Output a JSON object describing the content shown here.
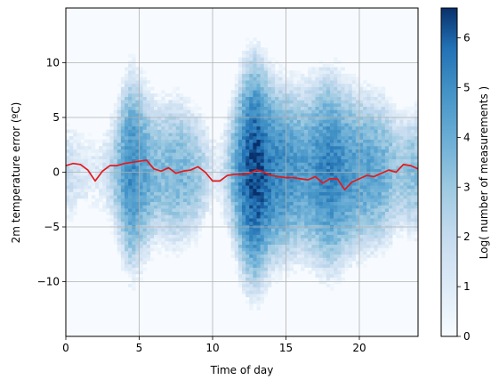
{
  "chart_data": {
    "type": "heatmap",
    "xlabel": "Time of day",
    "ylabel": "2m temperature error (ºC)",
    "xlim": [
      0,
      24
    ],
    "ylim": [
      -15,
      15
    ],
    "xticks": [
      0,
      5,
      10,
      15,
      20
    ],
    "yticks": [
      -10,
      -5,
      0,
      5,
      10
    ],
    "xtick_labels": [
      "0",
      "5",
      "10",
      "15",
      "20"
    ],
    "ytick_labels": [
      "−10",
      "−5",
      "0",
      "5",
      "10"
    ],
    "grid": true,
    "colormap": "Blues",
    "colorbar": {
      "label": "Log( number of measurements )",
      "range": [
        0,
        6.6
      ],
      "ticks": [
        0,
        1,
        2,
        3,
        4,
        5,
        6
      ],
      "tick_labels": [
        "0",
        "1",
        "2",
        "3",
        "4",
        "5",
        "6"
      ]
    },
    "density_by_hour": {
      "hours": [
        0,
        0.5,
        1,
        1.5,
        2,
        2.5,
        3,
        3.5,
        4,
        4.5,
        5,
        5.5,
        6,
        6.5,
        7,
        7.5,
        8,
        8.5,
        9,
        9.5,
        10,
        10.5,
        11,
        11.5,
        12,
        12.5,
        13,
        13.5,
        14,
        14.5,
        15,
        15.5,
        16,
        16.5,
        17,
        17.5,
        18,
        18.5,
        19,
        19.5,
        20,
        20.5,
        21,
        21.5,
        22,
        22.5,
        23,
        23.5,
        24
      ],
      "peak_log_count": [
        1.8,
        1.6,
        1.3,
        1.0,
        1.0,
        1.2,
        2.0,
        3.2,
        4.6,
        5.2,
        4.6,
        4.2,
        3.6,
        3.4,
        3.6,
        3.8,
        3.6,
        3.4,
        3.0,
        2.2,
        1.0,
        1.0,
        2.4,
        4.0,
        5.4,
        6.2,
        6.5,
        6.0,
        5.4,
        5.2,
        5.0,
        4.8,
        4.6,
        4.6,
        4.8,
        5.2,
        5.4,
        5.2,
        4.8,
        4.6,
        4.4,
        4.4,
        4.2,
        4.0,
        3.6,
        3.0,
        3.0,
        3.4,
        3.4
      ],
      "spread_std": [
        2.6,
        2.6,
        2.4,
        2.3,
        2.3,
        2.4,
        2.6,
        3.0,
        3.4,
        3.6,
        3.5,
        3.2,
        3.0,
        3.0,
        3.0,
        3.0,
        2.9,
        2.8,
        2.8,
        2.6,
        2.4,
        2.4,
        2.8,
        3.2,
        3.6,
        3.8,
        3.8,
        3.6,
        3.4,
        3.3,
        3.2,
        3.2,
        3.2,
        3.3,
        3.4,
        3.5,
        3.5,
        3.4,
        3.3,
        3.2,
        3.1,
        3.0,
        3.0,
        3.0,
        2.9,
        2.7,
        2.6,
        2.6,
        2.6
      ]
    },
    "series": [
      {
        "color": "#e41a1c",
        "x": [
          0,
          0.5,
          1,
          1.5,
          2,
          2.5,
          3,
          3.5,
          4,
          4.5,
          5,
          5.5,
          6,
          6.5,
          7,
          7.5,
          8,
          8.5,
          9,
          9.5,
          10,
          10.5,
          11,
          11.5,
          12,
          12.5,
          13,
          13.5,
          14,
          14.5,
          15,
          15.5,
          16,
          16.5,
          17,
          17.5,
          18,
          18.5,
          19,
          19.5,
          20,
          20.5,
          21,
          21.5,
          22,
          22.5,
          23,
          23.5,
          24
        ],
        "y": [
          0.6,
          0.8,
          0.7,
          0.2,
          -0.8,
          0.1,
          0.6,
          0.6,
          0.8,
          0.9,
          1.0,
          1.1,
          0.3,
          0.1,
          0.4,
          -0.1,
          0.1,
          0.2,
          0.5,
          0.0,
          -0.8,
          -0.8,
          -0.3,
          -0.2,
          -0.2,
          -0.1,
          0.2,
          0.0,
          -0.3,
          -0.4,
          -0.5,
          -0.5,
          -0.6,
          -0.7,
          -0.4,
          -1.0,
          -0.6,
          -0.6,
          -1.6,
          -0.9,
          -0.6,
          -0.3,
          -0.4,
          -0.1,
          0.2,
          0.0,
          0.7,
          0.6,
          0.3
        ]
      }
    ]
  }
}
